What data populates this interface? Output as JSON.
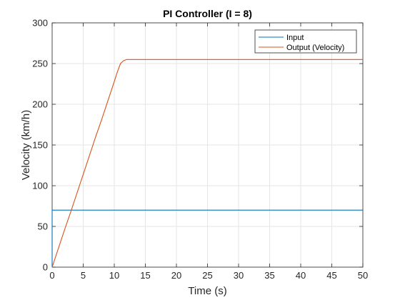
{
  "chart_data": {
    "type": "line",
    "title": "PI Controller (I = 8)",
    "xlabel": "Time (s)",
    "ylabel": "Velocity (km/h)",
    "xlim": [
      0,
      50
    ],
    "ylim": [
      0,
      300
    ],
    "xticks": [
      0,
      5,
      10,
      15,
      20,
      25,
      30,
      35,
      40,
      45,
      50
    ],
    "yticks": [
      0,
      50,
      100,
      150,
      200,
      250,
      300
    ],
    "grid": true,
    "legend_position": "top-right",
    "series": [
      {
        "name": "Input",
        "color": "#0072BD",
        "x": [
          0,
          0,
          50
        ],
        "y": [
          0,
          70,
          70
        ]
      },
      {
        "name": "Output (Velocity)",
        "color": "#D95319",
        "x": [
          0,
          1,
          2,
          3,
          4,
          5,
          6,
          7,
          8,
          9,
          10,
          10.5,
          11,
          11.5,
          12,
          13,
          15,
          20,
          30,
          40,
          50
        ],
        "y": [
          0,
          23,
          46,
          68,
          91,
          114,
          137,
          160,
          182,
          205,
          228,
          240,
          250,
          253.5,
          255,
          255,
          255,
          255,
          255,
          255,
          255
        ]
      }
    ]
  }
}
